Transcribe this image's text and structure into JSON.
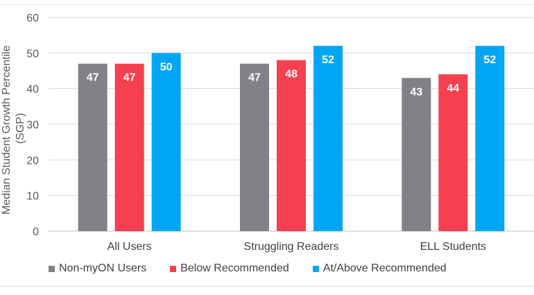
{
  "chart_data": {
    "type": "bar",
    "ylabel_lines": [
      "Median Student Growth Percentile",
      "(SGP)"
    ],
    "ylim": [
      0,
      60
    ],
    "yticks": [
      0,
      10,
      20,
      30,
      40,
      50,
      60
    ],
    "grid": true,
    "legend_position": "bottom",
    "categories": [
      "All Users",
      "Struggling Readers",
      "ELL Students"
    ],
    "series": [
      {
        "name": "Non-myON Users",
        "color": "#808285",
        "values": [
          47,
          47,
          43
        ]
      },
      {
        "name": "Below Recommended",
        "color": "#F5404F",
        "values": [
          47,
          48,
          44
        ]
      },
      {
        "name": "At/Above Recommended",
        "color": "#00A6F5",
        "values": [
          50,
          52,
          52
        ]
      }
    ]
  }
}
